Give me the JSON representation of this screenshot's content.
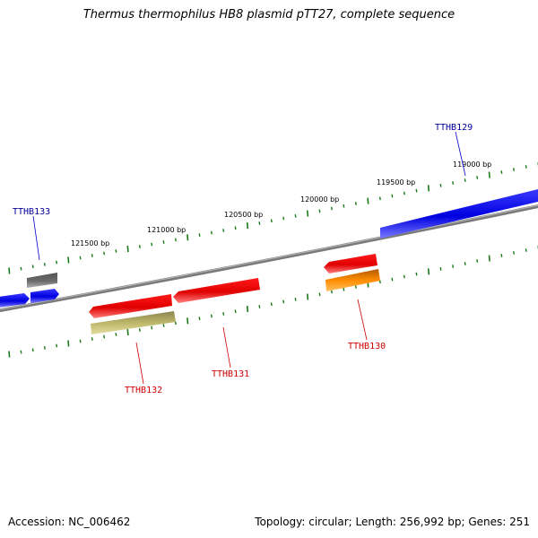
{
  "title": "Thermus thermophilus HB8 plasmid pTT27, complete sequence",
  "footer": {
    "accession": "Accession: NC_006462",
    "summary": "Topology: circular; Length: 256,992 bp; Genes: 251"
  },
  "colors": {
    "backbone": "#808080",
    "tick": "#1a7a1a",
    "forward_gene": "#0000e0",
    "reverse_gene": "#e00000",
    "label_forward": "#000099",
    "label_reverse": "#cc0000",
    "gray_feature": "#707070",
    "olive_feature": "#bdb76b",
    "orange_feature": "#ff8c00"
  },
  "scale_labels": [
    "121500 bp",
    "121000 bp",
    "120500 bp",
    "120000 bp",
    "119500 bp",
    "119000 bp"
  ],
  "genes": [
    {
      "name": "TTHB133",
      "strand": "forward",
      "color": "#2020ff"
    },
    {
      "name": "TTHB132",
      "strand": "reverse",
      "color": "#e60000"
    },
    {
      "name": "TTHB131",
      "strand": "reverse",
      "color": "#e60000"
    },
    {
      "name": "TTHB130",
      "strand": "reverse",
      "color": "#e60000"
    },
    {
      "name": "TTHB129",
      "strand": "forward",
      "color": "#1010e0"
    }
  ]
}
